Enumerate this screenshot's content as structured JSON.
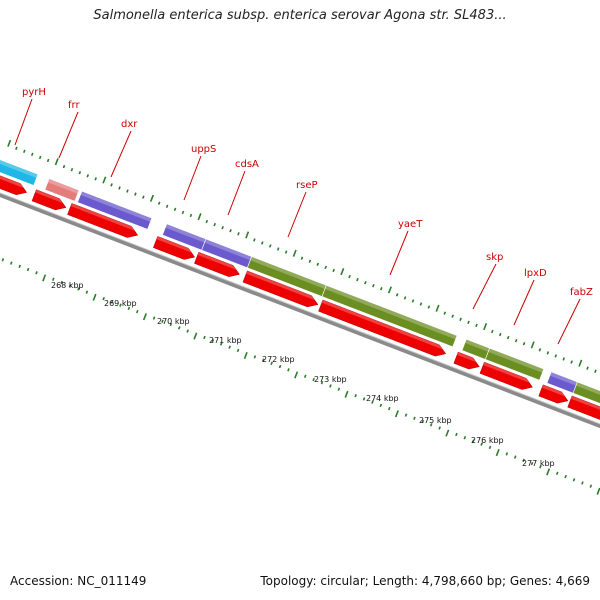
{
  "title": "Salmonella enterica subsp. enterica serovar Agona str. SL483...",
  "accession": "Accession: NC_011149",
  "summary": "Topology: circular; Length: 4,798,660 bp; Genes: 4,669",
  "colors": {
    "backbone": "#8a8a8a",
    "cds_arrow": "#ee0000",
    "gene_label": "#cc0000",
    "tick": "#2a7d2a",
    "cyan": "#1fb8e6",
    "pink": "#e57c7c",
    "purple": "#6a5acd",
    "olive": "#6b8e23"
  },
  "genes": [
    {
      "label": "pyrH",
      "color": "cyan"
    },
    {
      "label": "frr",
      "color": "pink"
    },
    {
      "label": "dxr",
      "color": "purple"
    },
    {
      "label": "uppS",
      "color": "purple"
    },
    {
      "label": "cdsA",
      "color": "purple"
    },
    {
      "label": "rseP",
      "color": "olive"
    },
    {
      "label": "yaeT",
      "color": "olive"
    },
    {
      "label": "skp",
      "color": "olive"
    },
    {
      "label": "lpxD",
      "color": "olive"
    },
    {
      "label": "fabZ",
      "color": "purple"
    }
  ],
  "kbp_labels": [
    "268 kbp",
    "269 kbp",
    "270 kbp",
    "271 kbp",
    "272 kbp",
    "273 kbp",
    "274 kbp",
    "275 kbp",
    "276 kbp",
    "277 kbp"
  ]
}
